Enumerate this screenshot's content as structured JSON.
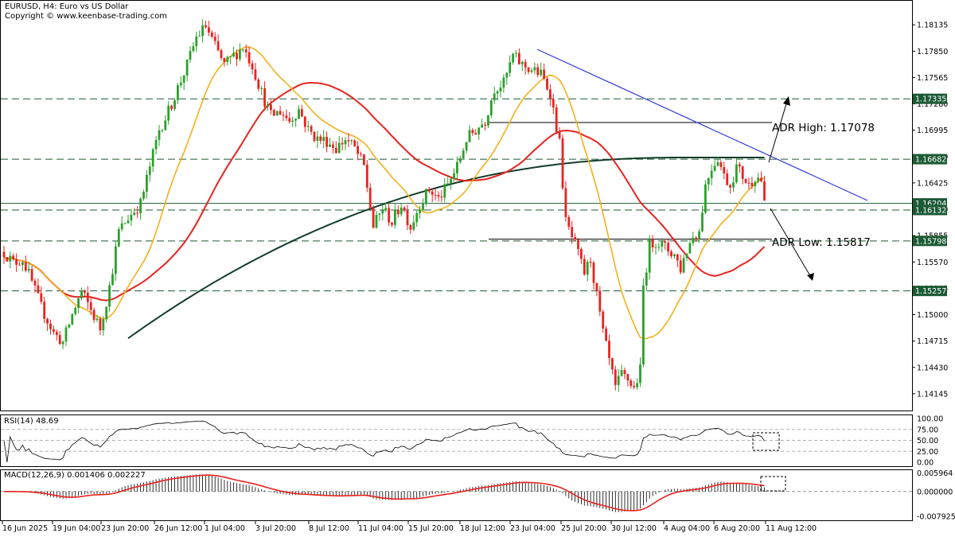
{
  "header": {
    "symbol_line": "EURUSD, H4:  Euro vs US Dollar",
    "copyright": "Copyright © www.keenbase-trading.com"
  },
  "annotations": {
    "adr_high": "ADR High: 1.17078",
    "adr_low": "ADR Low: 1.15817"
  },
  "rsi_panel": {
    "label": "RSI(14) 48.69"
  },
  "macd_panel": {
    "label": "MACD(12,26,9) 0.001406 0.002227"
  },
  "colors": {
    "bull": "#2ca02c",
    "bear": "#e8231f",
    "sma_fast": "#f2b11b",
    "sma_mid": "#e8231f",
    "sma_slow": "#123d2a",
    "trendline": "#2f3bd8",
    "hlevel": "#1c5a35",
    "price_tag_bg": "#1c5a35"
  },
  "chart_data": [
    {
      "type": "candlestick",
      "title": "EURUSD, H4:  Euro vs US Dollar",
      "y_ticks": [
        "1.18135",
        "1.17850",
        "1.17565",
        "1.17280",
        "1.16995",
        "1.16710",
        "1.16425",
        "1.16140",
        "1.15855",
        "1.15570",
        "1.15285",
        "1.15000",
        "1.14715",
        "1.14430",
        "1.14145"
      ],
      "ylim": [
        1.13955,
        1.18395
      ],
      "x_tick_labels": [
        "16 Jun 2025",
        "19 Jun 04:00",
        "23 Jun 20:00",
        "26 Jun 12:00",
        "1 Jul 04:00",
        "3 Jul 20:00",
        "8 Jul 12:00",
        "11 Jul 04:00",
        "15 Jul 20:00",
        "18 Jul 12:00",
        "23 Jul 04:00",
        "25 Jul 20:00",
        "30 Jul 12:00",
        "4 Aug 04:00",
        "6 Aug 20:00",
        "11 Aug 12:00"
      ],
      "horizontal_levels": [
        {
          "label": "1.17335",
          "value": 1.17335,
          "style": "dashed"
        },
        {
          "label": "1.16682",
          "value": 1.16682,
          "style": "dashed"
        },
        {
          "label": "1.16204",
          "value": 1.16204,
          "style": "solid"
        },
        {
          "label": "1.16132",
          "value": 1.16132,
          "style": "dashed"
        },
        {
          "label": "1.15798",
          "value": 1.15798,
          "style": "dashed"
        },
        {
          "label": "1.15257",
          "value": 1.15257,
          "style": "dashed"
        }
      ],
      "adr_high": 1.17078,
      "adr_low": 1.15817,
      "close_path_anchors": [
        [
          0,
          1.1568
        ],
        [
          3,
          1.1556
        ],
        [
          6,
          1.156
        ],
        [
          9,
          1.1535
        ],
        [
          12,
          1.1508
        ],
        [
          16,
          1.148
        ],
        [
          19,
          1.147
        ],
        [
          22,
          1.15
        ],
        [
          25,
          1.1525
        ],
        [
          28,
          1.1505
        ],
        [
          31,
          1.1485
        ],
        [
          34,
          1.153
        ],
        [
          37,
          1.159
        ],
        [
          40,
          1.1605
        ],
        [
          44,
          1.162
        ],
        [
          47,
          1.166
        ],
        [
          50,
          1.17
        ],
        [
          53,
          1.172
        ],
        [
          56,
          1.1745
        ],
        [
          59,
          1.177
        ],
        [
          62,
          1.18
        ],
        [
          65,
          1.1812
        ],
        [
          68,
          1.179
        ],
        [
          71,
          1.177
        ],
        [
          74,
          1.178
        ],
        [
          77,
          1.179
        ],
        [
          80,
          1.177
        ],
        [
          83,
          1.174
        ],
        [
          86,
          1.1715
        ],
        [
          89,
          1.172
        ],
        [
          92,
          1.171
        ],
        [
          95,
          1.1722
        ],
        [
          98,
          1.17
        ],
        [
          101,
          1.169
        ],
        [
          104,
          1.1688
        ],
        [
          107,
          1.168
        ],
        [
          110,
          1.169
        ],
        [
          113,
          1.168
        ],
        [
          116,
          1.166
        ],
        [
          119,
          1.1595
        ],
        [
          122,
          1.1615
        ],
        [
          125,
          1.16
        ],
        [
          128,
          1.162
        ],
        [
          131,
          1.1595
        ],
        [
          134,
          1.162
        ],
        [
          137,
          1.1635
        ],
        [
          140,
          1.1625
        ],
        [
          143,
          1.164
        ],
        [
          146,
          1.166
        ],
        [
          149,
          1.169
        ],
        [
          152,
          1.17
        ],
        [
          155,
          1.171
        ],
        [
          158,
          1.1745
        ],
        [
          161,
          1.175
        ],
        [
          164,
          1.178
        ],
        [
          167,
          1.177
        ],
        [
          170,
          1.1765
        ],
        [
          173,
          1.176
        ],
        [
          176,
          1.174
        ],
        [
          179,
          1.1685
        ],
        [
          181,
          1.16
        ],
        [
          184,
          1.1575
        ],
        [
          187,
          1.1545
        ],
        [
          189,
          1.156
        ],
        [
          191,
          1.152
        ],
        [
          193,
          1.148
        ],
        [
          195,
          1.145
        ],
        [
          197,
          1.142
        ],
        [
          199,
          1.1435
        ],
        [
          201,
          1.143
        ],
        [
          203,
          1.142
        ],
        [
          205,
          1.144
        ],
        [
          206,
          1.153
        ],
        [
          208,
          1.1575
        ],
        [
          210,
          1.158
        ],
        [
          212,
          1.1575
        ],
        [
          214,
          1.157
        ],
        [
          216,
          1.1565
        ],
        [
          218,
          1.155
        ],
        [
          220,
          1.157
        ],
        [
          222,
          1.1585
        ],
        [
          224,
          1.159
        ],
        [
          226,
          1.164
        ],
        [
          228,
          1.166
        ],
        [
          230,
          1.167
        ],
        [
          232,
          1.165
        ],
        [
          234,
          1.164
        ],
        [
          236,
          1.166
        ],
        [
          238,
          1.165
        ],
        [
          240,
          1.164
        ],
        [
          242,
          1.165
        ],
        [
          244,
          1.1646
        ],
        [
          245,
          1.1618
        ]
      ],
      "series": [
        {
          "name": "fast_ma",
          "color": "#f2b11b"
        },
        {
          "name": "mid_ma",
          "color": "#e8231f"
        },
        {
          "name": "slow_ma",
          "color": "#123d2a"
        }
      ]
    },
    {
      "type": "line",
      "title": "RSI(14) 48.69",
      "y_ticks": [
        "100.00",
        "75.00",
        "50.00",
        "25.00",
        "0.00"
      ],
      "ylim": [
        0,
        100
      ],
      "last_value": 48.69
    },
    {
      "type": "histogram+line",
      "title": "MACD(12,26,9) 0.001406 0.002227",
      "y_ticks": [
        "0.005964",
        "0.000000",
        "-0.007925"
      ],
      "ylim": [
        -0.009,
        0.0066
      ],
      "macd_main": 0.001406,
      "macd_signal": 0.002227
    }
  ]
}
